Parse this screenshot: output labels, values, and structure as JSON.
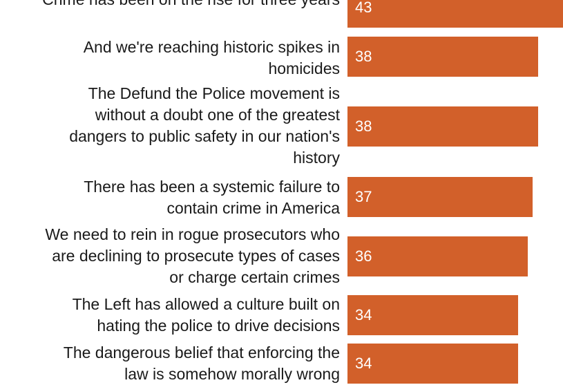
{
  "chart_data": {
    "type": "bar",
    "orientation": "horizontal",
    "categories": [
      "Crime has been on the rise for three years",
      "And we're reaching historic spikes in homicides",
      "The Defund the Police movement is without a doubt one of the greatest dangers to public safety in our nation's history",
      "There has been a systemic failure to contain crime in America",
      "We need to rein in rogue prosecutors who are declining to prosecute types of cases or charge certain crimes",
      "The Left has allowed a culture built on hating the police to drive decisions",
      "The dangerous belief that enforcing the law is somehow morally wrong"
    ],
    "category_lines": [
      [
        "Crime has been on the rise for three years"
      ],
      [
        "And we're reaching historic spikes in",
        "homicides"
      ],
      [
        "The Defund the Police movement is",
        "without a doubt one of the greatest",
        "dangers to public safety in our nation's",
        "history"
      ],
      [
        "There has been a systemic failure to",
        "contain crime in America"
      ],
      [
        "We need to rein in rogue prosecutors who",
        "are declining to prosecute types of cases",
        "or charge certain crimes"
      ],
      [
        "The Left has allowed a culture built on",
        "hating the police to drive decisions"
      ],
      [
        "The dangerous belief that enforcing the",
        "law is somehow morally wrong"
      ]
    ],
    "values": [
      43,
      38,
      38,
      37,
      36,
      34,
      34
    ],
    "value_labels": [
      "43",
      "38",
      "38",
      "37",
      "36",
      "34",
      "34"
    ],
    "xlim": [
      0,
      43
    ],
    "bar_color": "#d2602a",
    "value_label_color": "#ffffff",
    "grid": false
  }
}
